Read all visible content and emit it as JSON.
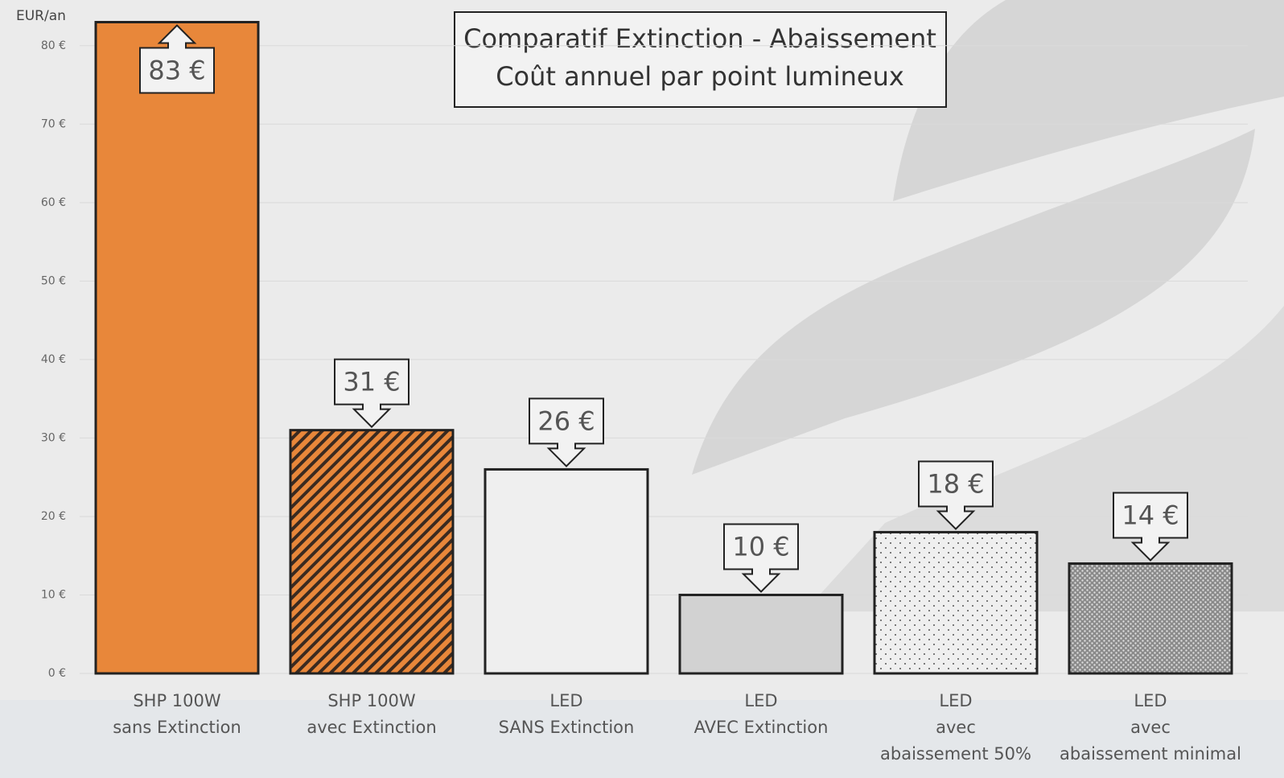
{
  "chart_data": {
    "type": "bar",
    "title": [
      "Comparatif Extinction - Abaissement",
      "Coût annuel par point lumineux"
    ],
    "y_label": "EUR/an",
    "categories": [
      [
        "SHP 100W",
        "sans Extinction"
      ],
      [
        "SHP 100W",
        "avec Extinction"
      ],
      [
        "LED",
        "SANS Extinction"
      ],
      [
        "LED",
        "AVEC Extinction"
      ],
      [
        "LED",
        "avec",
        "abaissement 50%"
      ],
      [
        "LED",
        "avec",
        "abaissement minimal"
      ]
    ],
    "values": [
      83,
      31,
      26,
      10,
      18,
      14
    ],
    "value_labels": [
      "83 €",
      "31 €",
      "26 €",
      "10 €",
      "18 €",
      "14 €"
    ],
    "colors": [
      "#e8873a",
      "#e8873a",
      "#efefef",
      "#d2d2d2",
      "#efefef",
      "#9a9a9a"
    ],
    "patterns": [
      "none",
      "stripes",
      "none",
      "none",
      "dots",
      "dense-dots"
    ],
    "ylim": [
      0,
      85
    ],
    "yticks": [
      {
        "value": 0,
        "label": "0 €"
      },
      {
        "value": 10,
        "label": "10 €"
      },
      {
        "value": 20,
        "label": "20 €"
      },
      {
        "value": 30,
        "label": "30 €"
      },
      {
        "value": 40,
        "label": "40 €"
      },
      {
        "value": 50,
        "label": "50 €"
      },
      {
        "value": 60,
        "label": "60 €"
      },
      {
        "value": 70,
        "label": "70 €"
      },
      {
        "value": 80,
        "label": "80 €"
      }
    ],
    "grid": true
  }
}
